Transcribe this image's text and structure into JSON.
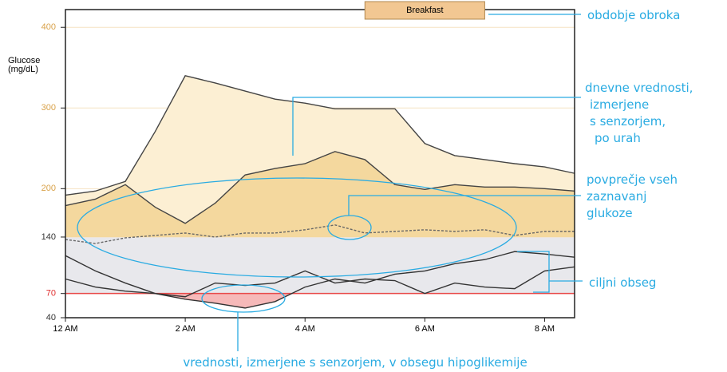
{
  "chart_data": {
    "type": "line",
    "ylabel": [
      "Glucose",
      "(mg/dL)"
    ],
    "x": [
      0,
      0.5,
      1,
      1.5,
      2,
      2.5,
      3,
      3.5,
      4,
      4.5,
      5,
      5.5,
      6,
      6.5,
      7,
      7.5,
      8,
      8.5
    ],
    "xlim": [
      0,
      8.5
    ],
    "xticks": [
      {
        "value": 0,
        "label": "12 AM"
      },
      {
        "value": 2,
        "label": "2 AM"
      },
      {
        "value": 4,
        "label": "4 AM"
      },
      {
        "value": 6,
        "label": "6 AM"
      },
      {
        "value": 8,
        "label": "8 AM"
      }
    ],
    "ylim": [
      40,
      422
    ],
    "yticks": [
      400,
      300,
      200,
      140,
      70,
      40
    ],
    "ytick_colors": [
      "#d9a24a",
      "#d9a24a",
      "#d9a24a",
      "#333333",
      "#e03030",
      "#333333"
    ],
    "target_range": [
      70,
      140
    ],
    "target_color": "#e8e8ec",
    "low_line_color": "#e84a4a",
    "high_fill_colors": [
      "#fcefd3",
      "#f4d89e"
    ],
    "hypo_fill_color": "#f6b9b9",
    "meal": {
      "label": "Breakfast",
      "start": 5,
      "end": 7,
      "color": "#f2c792"
    },
    "series": [
      {
        "color": "#444444",
        "values": [
          192,
          197,
          209,
          271,
          340,
          331,
          321,
          311,
          306,
          299,
          299,
          299,
          256,
          241,
          236,
          231,
          227,
          219
        ]
      },
      {
        "color": "#444444",
        "values": [
          179,
          187,
          205,
          177,
          157,
          182,
          217,
          225,
          231,
          246,
          236,
          205,
          199,
          205,
          202,
          202,
          200,
          197
        ]
      },
      {
        "color": "#666666",
        "dashed": true,
        "values": [
          137,
          132,
          139,
          142,
          145,
          140,
          145,
          145,
          149,
          155,
          145,
          147,
          149,
          147,
          149,
          142,
          147,
          147
        ]
      },
      {
        "color": "#333333",
        "values": [
          117,
          98,
          83,
          70,
          63,
          58,
          52,
          60,
          78,
          88,
          83,
          94,
          98,
          107,
          112,
          122,
          119,
          115
        ]
      },
      {
        "color": "#333333",
        "values": [
          88,
          78,
          73,
          70,
          66,
          83,
          80,
          83,
          98,
          83,
          88,
          86,
          70,
          83,
          78,
          76,
          98,
          103
        ]
      }
    ],
    "annotations": {
      "meal_period": [
        "obdobje obroka"
      ],
      "daily_values": [
        "dnevne vrednosti,",
        "izmerjene",
        "s senzorjem,",
        "po urah"
      ],
      "mean": [
        "povprečje vseh",
        "zaznavanj",
        "glukoze"
      ],
      "target": [
        "ciljni obseg"
      ],
      "hypo": [
        "vrednosti, izmerjene s senzorjem, v obsegu hipoglikemije"
      ]
    }
  }
}
